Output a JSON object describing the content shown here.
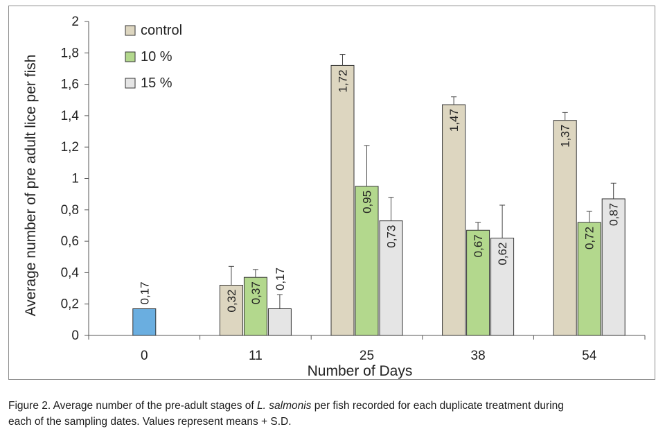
{
  "chart_data": {
    "type": "bar",
    "categories": [
      "0",
      "11",
      "25",
      "38",
      "54"
    ],
    "series": [
      {
        "name": "control",
        "color": "#ddd6c0",
        "values": [
          null,
          0.32,
          1.72,
          1.47,
          1.37
        ],
        "errors": [
          null,
          0.12,
          0.07,
          0.05,
          0.05
        ],
        "labels": [
          "",
          "0,32",
          "1,72",
          "1,47",
          "1,37"
        ]
      },
      {
        "name": "10 %",
        "color": "#b3d88d",
        "values": [
          null,
          0.37,
          0.95,
          0.67,
          0.72
        ],
        "errors": [
          null,
          0.05,
          0.26,
          0.05,
          0.07
        ],
        "labels": [
          "",
          "0,37",
          "0,95",
          "0,67",
          "0,72"
        ]
      },
      {
        "name": "15 %",
        "color": "#e5e5e5",
        "values": [
          null,
          0.17,
          0.73,
          0.62,
          0.87
        ],
        "errors": [
          null,
          0.09,
          0.15,
          0.21,
          0.1
        ],
        "labels": [
          "",
          "0,17",
          "0,73",
          "0,62",
          "0,87"
        ]
      }
    ],
    "baseline": {
      "category": "0",
      "value": 0.17,
      "label": "0,17",
      "color": "#6aaee0"
    },
    "xlabel": "Number of Days",
    "ylabel": "Average number of pre adult lice per fish",
    "ylim": [
      0,
      2
    ],
    "yticks": [
      0,
      0.2,
      0.4,
      0.6,
      0.8,
      1,
      1.2,
      1.4,
      1.6,
      1.8,
      2
    ],
    "ytick_labels": [
      "0",
      "0,2",
      "0,4",
      "0,6",
      "0,8",
      "1",
      "1,2",
      "1,4",
      "1,6",
      "1,8",
      "2"
    ],
    "grid": false,
    "legend_position": "top-left",
    "error_bars": "plus S.D."
  },
  "caption": {
    "line1_before": "Figure 2. Average number of the pre-adult stages of ",
    "species": "L. salmonis",
    "line1_after": " per fish recorded for each duplicate treatment during",
    "line2": "each of the sampling dates. Values represent means + S.D."
  }
}
